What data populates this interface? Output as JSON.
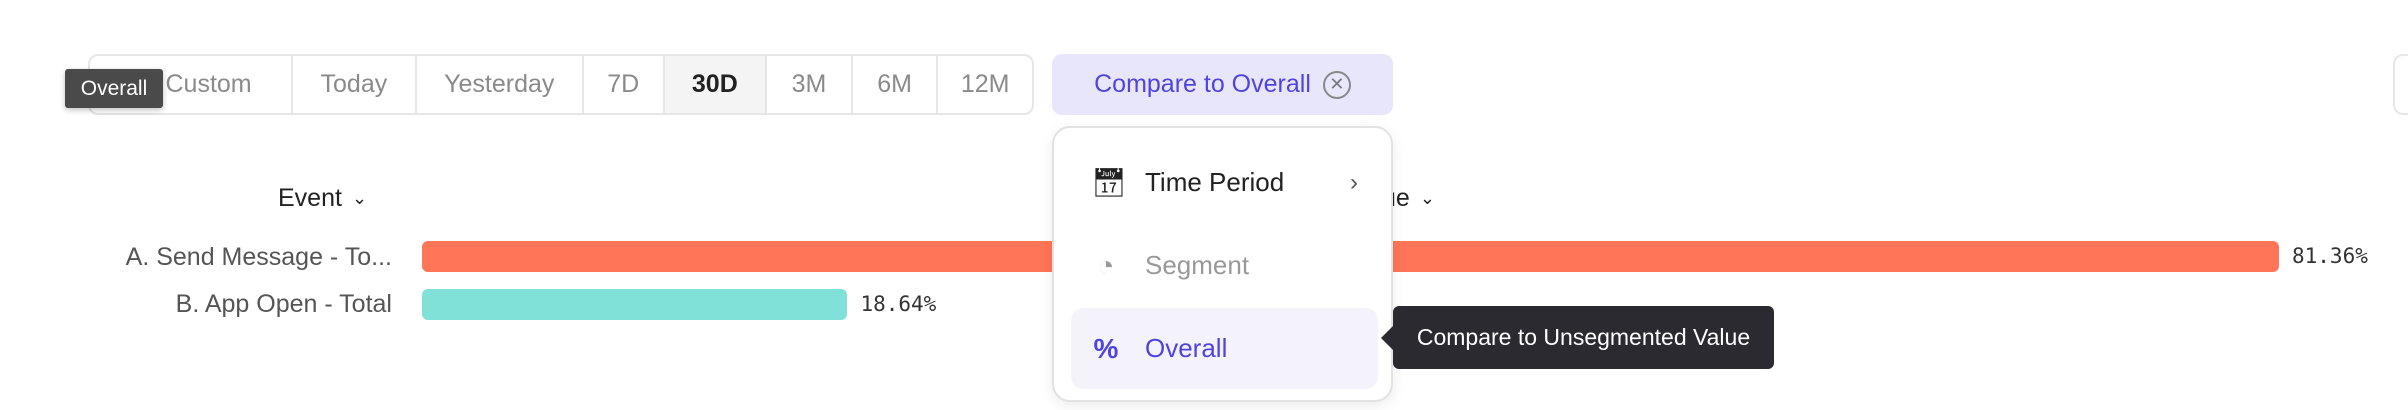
{
  "date_range": {
    "options": [
      {
        "label": "Custom",
        "active": false
      },
      {
        "label": "Today",
        "active": false
      },
      {
        "label": "Yesterday",
        "active": false
      },
      {
        "label": "7D",
        "active": false
      },
      {
        "label": "30D",
        "active": true
      },
      {
        "label": "3M",
        "active": false
      },
      {
        "label": "6M",
        "active": false
      },
      {
        "label": "12M",
        "active": false
      }
    ]
  },
  "compare": {
    "label": "Compare to Overall",
    "clear_icon": "close-circle-icon"
  },
  "hover_tooltip": "Overall",
  "table": {
    "event_header": "Event",
    "value_header_partial": "ue"
  },
  "rows": [
    {
      "label": "A. Send Message - To...",
      "value": "81.36%",
      "percent": 81.36,
      "color": "#ff7557"
    },
    {
      "label": "B. App Open - Total",
      "value": "18.64%",
      "percent": 18.64,
      "color": "#80e1d9"
    }
  ],
  "menu": {
    "items": [
      {
        "label": "Time Period",
        "icon": "calendar-icon",
        "has_submenu": true,
        "state": "enabled"
      },
      {
        "label": "Segment",
        "icon": "pie-icon",
        "state": "disabled"
      },
      {
        "label": "Overall",
        "icon": "percent-icon",
        "state": "selected"
      }
    ]
  },
  "menu_tooltip": "Compare to Unsegmented Value",
  "colors": {
    "accent": "#4f44e0",
    "accent_bg": "#e8e6fb"
  }
}
